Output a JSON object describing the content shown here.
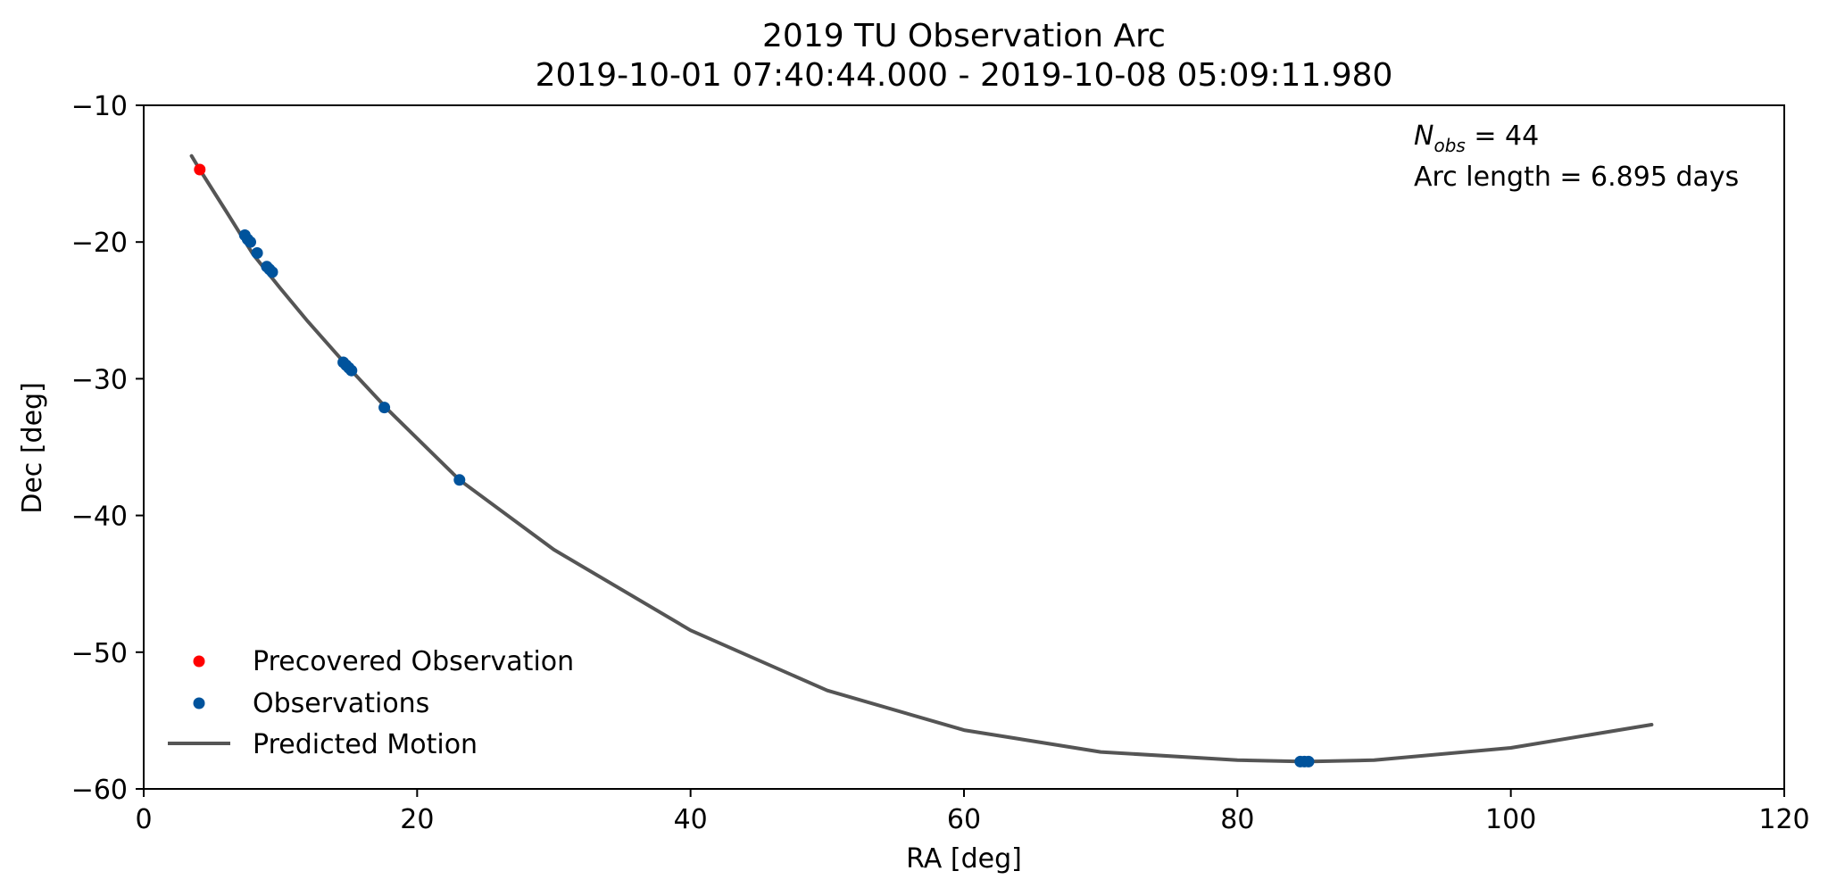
{
  "chart_data": {
    "type": "scatter",
    "title": "2019 TU Observation Arc",
    "subtitle": "2019-10-01 07:40:44.000 - 2019-10-08 05:09:11.980",
    "xlabel": "RA [deg]",
    "ylabel": "Dec [deg]",
    "xlim": [
      0,
      120
    ],
    "ylim": [
      -60,
      -10
    ],
    "xticks": [
      0,
      20,
      40,
      60,
      80,
      100,
      120
    ],
    "yticks": [
      -60,
      -50,
      -40,
      -30,
      -20,
      -10
    ],
    "xtick_labels": [
      "0",
      "20",
      "40",
      "60",
      "80",
      "100",
      "120"
    ],
    "ytick_labels": [
      "−60",
      "−50",
      "−40",
      "−30",
      "−20",
      "−10"
    ],
    "grid": false,
    "legend_position": "lower-left",
    "annotations": {
      "nobs_symbol": "N",
      "nobs_subscript": "obs",
      "nobs_rest": " = 44",
      "arc_length": "Arc length = 6.895 days"
    },
    "series": [
      {
        "name": "Precovered Observation",
        "kind": "scatter",
        "color": "#ff0000",
        "x": [
          4.1
        ],
        "y": [
          -14.7
        ]
      },
      {
        "name": "Observations",
        "kind": "scatter",
        "color": "#00539c",
        "x": [
          7.4,
          7.6,
          7.8,
          8.3,
          9.0,
          9.2,
          9.4,
          14.6,
          14.8,
          15.0,
          15.2,
          17.6,
          23.1,
          84.6,
          84.9,
          85.2
        ],
        "y": [
          -19.5,
          -19.8,
          -20.0,
          -20.8,
          -21.8,
          -22.0,
          -22.2,
          -28.8,
          -29.0,
          -29.2,
          -29.4,
          -32.1,
          -37.4,
          -58.0,
          -58.0,
          -58.0
        ]
      },
      {
        "name": "Predicted Motion",
        "kind": "line",
        "color": "#555555",
        "x": [
          3.5,
          4.1,
          6,
          8,
          10,
          12,
          15,
          18,
          23.1,
          30,
          40,
          50,
          60,
          70,
          80,
          85,
          90,
          100,
          110.3
        ],
        "y": [
          -13.7,
          -14.7,
          -17.7,
          -20.9,
          -23.4,
          -25.8,
          -29.2,
          -32.4,
          -37.4,
          -42.5,
          -48.4,
          -52.8,
          -55.7,
          -57.3,
          -57.9,
          -58.0,
          -57.9,
          -57.0,
          -55.3
        ]
      }
    ]
  }
}
